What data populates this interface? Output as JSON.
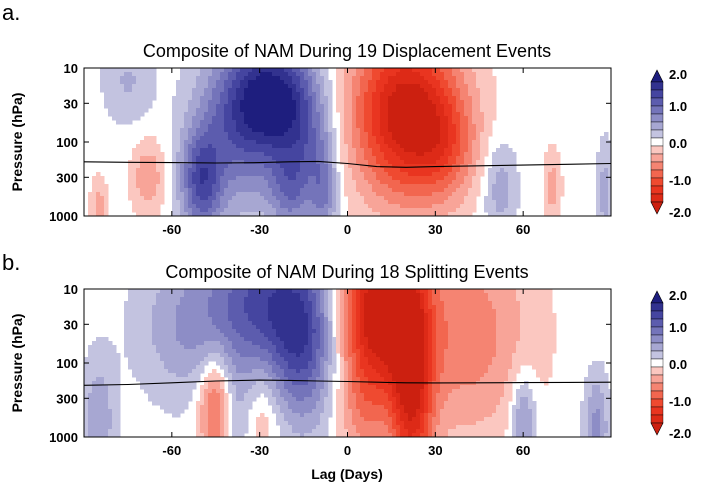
{
  "chart_data": [
    {
      "type": "heatmap",
      "panel_label": "a.",
      "title": "Composite of NAM During 19 Displacement Events",
      "xlabel": "",
      "ylabel": "Pressure (hPa)",
      "xlim": [
        -90,
        90
      ],
      "ylim": [
        1000,
        10
      ],
      "y_scale": "log",
      "x_ticks": [
        -60,
        -30,
        0,
        30,
        60
      ],
      "y_ticks": [
        10,
        30,
        100,
        300,
        1000
      ],
      "tropopause_line": {
        "x": [
          -90,
          -75,
          -60,
          -45,
          -30,
          -20,
          -10,
          0,
          10,
          20,
          30,
          45,
          60,
          75,
          90
        ],
        "y": [
          185,
          188,
          190,
          192,
          190,
          185,
          183,
          195,
          215,
          220,
          215,
          210,
          205,
          200,
          195
        ]
      },
      "features": [
        {
          "x": -25,
          "p": 25,
          "value": 1.8,
          "sx": 10,
          "sy": 0.55
        },
        {
          "x": -38,
          "p": 60,
          "value": 1.0,
          "sx": 10,
          "sy": 0.8
        },
        {
          "x": -15,
          "p": 150,
          "value": 0.8,
          "sx": 7,
          "sy": 0.6
        },
        {
          "x": -50,
          "p": 350,
          "value": 1.3,
          "sx": 5,
          "sy": 0.5
        },
        {
          "x": -20,
          "p": 500,
          "value": 0.6,
          "sx": 5,
          "sy": 0.35
        },
        {
          "x": -8,
          "p": 500,
          "value": 0.7,
          "sx": 3,
          "sy": 0.5
        },
        {
          "x": 20,
          "p": 40,
          "value": -2.1,
          "sx": 13,
          "sy": 0.8
        },
        {
          "x": 33,
          "p": 120,
          "value": -0.6,
          "sx": 8,
          "sy": 0.5
        },
        {
          "x": -68,
          "p": 300,
          "value": -0.6,
          "sx": 4,
          "sy": 0.35
        },
        {
          "x": -85,
          "p": 800,
          "value": -0.5,
          "sx": 2,
          "sy": 0.3
        },
        {
          "x": 70,
          "p": 400,
          "value": -0.5,
          "sx": 2,
          "sy": 0.35
        },
        {
          "x": 52,
          "p": 400,
          "value": 0.55,
          "sx": 4,
          "sy": 0.45
        },
        {
          "x": 88,
          "p": 500,
          "value": 0.5,
          "sx": 2,
          "sy": 0.5
        },
        {
          "x": -75,
          "p": 15,
          "value": 0.4,
          "sx": 6,
          "sy": 0.4
        }
      ]
    },
    {
      "type": "heatmap",
      "panel_label": "b.",
      "title": "Composite of NAM During 18 Splitting Events",
      "xlabel": "Lag (Days)",
      "ylabel": "Pressure (hPa)",
      "xlim": [
        -90,
        90
      ],
      "ylim": [
        1000,
        10
      ],
      "y_scale": "log",
      "x_ticks": [
        -60,
        -30,
        0,
        30,
        60
      ],
      "y_ticks": [
        10,
        30,
        100,
        300,
        1000
      ],
      "tropopause_line": {
        "x": [
          -90,
          -75,
          -60,
          -45,
          -30,
          -20,
          -10,
          0,
          10,
          20,
          30,
          45,
          60,
          75,
          90
        ],
        "y": [
          200,
          195,
          185,
          175,
          170,
          172,
          175,
          178,
          182,
          185,
          186,
          185,
          184,
          183,
          182
        ]
      },
      "features": [
        {
          "x": -30,
          "p": 15,
          "value": 1.3,
          "sx": 12,
          "sy": 0.7
        },
        {
          "x": -15,
          "p": 50,
          "value": 1.3,
          "sx": 8,
          "sy": 0.8
        },
        {
          "x": -55,
          "p": 30,
          "value": 0.6,
          "sx": 12,
          "sy": 0.7
        },
        {
          "x": -38,
          "p": 500,
          "value": 0.5,
          "sx": 5,
          "sy": 0.5
        },
        {
          "x": -85,
          "p": 600,
          "value": 0.6,
          "sx": 4,
          "sy": 0.6
        },
        {
          "x": 60,
          "p": 600,
          "value": 0.8,
          "sx": 3,
          "sy": 0.45
        },
        {
          "x": 85,
          "p": 700,
          "value": 0.7,
          "sx": 3,
          "sy": 0.5
        },
        {
          "x": 10,
          "p": 20,
          "value": -2.1,
          "sx": 9,
          "sy": 0.8
        },
        {
          "x": 22,
          "p": 200,
          "value": -1.6,
          "sx": 5,
          "sy": 1.2
        },
        {
          "x": 40,
          "p": 40,
          "value": -0.8,
          "sx": 16,
          "sy": 1.0
        },
        {
          "x": -45,
          "p": 400,
          "value": -1.2,
          "sx": 4,
          "sy": 0.5
        },
        {
          "x": -30,
          "p": 500,
          "value": -0.5,
          "sx": 5,
          "sy": 0.5
        },
        {
          "x": 5,
          "p": 500,
          "value": -0.5,
          "sx": 6,
          "sy": 0.5
        }
      ]
    }
  ],
  "colorbar": {
    "tick_labels": [
      "2.0",
      "1.0",
      "0.0",
      "-1.0",
      "-2.0"
    ],
    "levels": [
      2.0,
      1.75,
      1.5,
      1.25,
      1.0,
      0.75,
      0.5,
      0.25,
      0.0,
      -0.25,
      -0.5,
      -0.75,
      -1.0,
      -1.25,
      -1.5,
      -1.75,
      -2.0
    ],
    "colors": [
      "#1e1e7e",
      "#32328f",
      "#4545a0",
      "#5c5cae",
      "#7474ba",
      "#8d8dc6",
      "#a7a7d2",
      "#c3c3e0",
      "#ffffff",
      "#fbc7c0",
      "#f8a498",
      "#f58472",
      "#f2664f",
      "#ef4a30",
      "#e93520",
      "#dd2a17",
      "#cc2010"
    ]
  }
}
